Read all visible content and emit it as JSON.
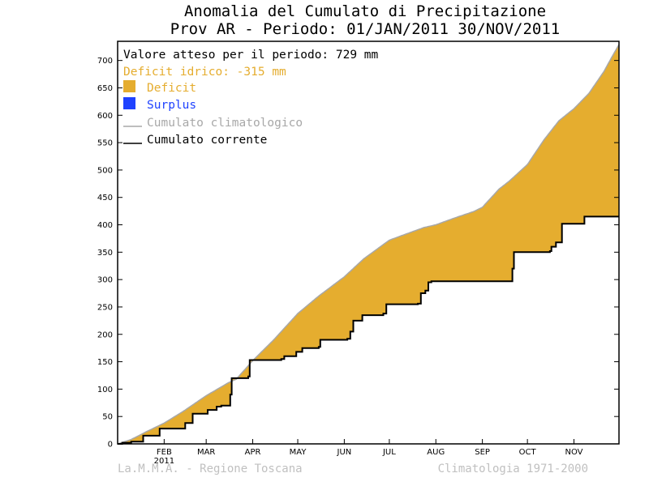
{
  "chart_data": {
    "type": "area",
    "title": "Anomalia del Cumulato di Precipitazione",
    "subtitle": "Prov AR - Periodo: 01/JAN/2011 30/NOV/2011",
    "xlabel": "",
    "ylabel": "",
    "ylim": [
      0,
      735
    ],
    "xlim_days": [
      1,
      335
    ],
    "yticks": [
      0,
      50,
      100,
      150,
      200,
      250,
      300,
      350,
      400,
      450,
      500,
      550,
      600,
      650,
      700
    ],
    "xticks": [
      {
        "day": 32,
        "label": "FEB",
        "sublabel": "2011"
      },
      {
        "day": 60,
        "label": "MAR",
        "sublabel": ""
      },
      {
        "day": 91,
        "label": "APR",
        "sublabel": ""
      },
      {
        "day": 121,
        "label": "MAY",
        "sublabel": ""
      },
      {
        "day": 152,
        "label": "JUN",
        "sublabel": ""
      },
      {
        "day": 182,
        "label": "JUL",
        "sublabel": ""
      },
      {
        "day": 213,
        "label": "AUG",
        "sublabel": ""
      },
      {
        "day": 244,
        "label": "SEP",
        "sublabel": ""
      },
      {
        "day": 274,
        "label": "OCT",
        "sublabel": ""
      },
      {
        "day": 305,
        "label": "NOV",
        "sublabel": ""
      }
    ],
    "series": [
      {
        "name": "Cumulato climatologico",
        "color": "#a8a8a8",
        "points": [
          [
            1,
            0
          ],
          [
            10,
            8
          ],
          [
            20,
            22
          ],
          [
            32,
            38
          ],
          [
            45,
            60
          ],
          [
            60,
            88
          ],
          [
            75,
            112
          ],
          [
            80,
            118
          ],
          [
            91,
            152
          ],
          [
            105,
            190
          ],
          [
            121,
            238
          ],
          [
            135,
            270
          ],
          [
            152,
            305
          ],
          [
            165,
            338
          ],
          [
            182,
            372
          ],
          [
            195,
            385
          ],
          [
            205,
            395
          ],
          [
            213,
            400
          ],
          [
            225,
            412
          ],
          [
            238,
            424
          ],
          [
            244,
            432
          ],
          [
            255,
            465
          ],
          [
            262,
            480
          ],
          [
            274,
            510
          ],
          [
            285,
            555
          ],
          [
            295,
            590
          ],
          [
            305,
            612
          ],
          [
            315,
            640
          ],
          [
            325,
            680
          ],
          [
            330,
            705
          ],
          [
            335,
            729
          ]
        ]
      },
      {
        "name": "Cumulato corrente",
        "color": "#000000",
        "steps": [
          [
            1,
            0
          ],
          [
            4,
            2
          ],
          [
            10,
            4
          ],
          [
            18,
            15
          ],
          [
            29,
            28
          ],
          [
            43,
            28
          ],
          [
            46,
            38
          ],
          [
            51,
            55
          ],
          [
            61,
            62
          ],
          [
            67,
            68
          ],
          [
            70,
            70
          ],
          [
            76,
            90
          ],
          [
            77,
            120
          ],
          [
            88,
            123
          ],
          [
            89,
            153
          ],
          [
            110,
            155
          ],
          [
            112,
            160
          ],
          [
            120,
            168
          ],
          [
            124,
            175
          ],
          [
            135,
            177
          ],
          [
            136,
            190
          ],
          [
            154,
            192
          ],
          [
            156,
            205
          ],
          [
            158,
            225
          ],
          [
            164,
            235
          ],
          [
            178,
            238
          ],
          [
            180,
            255
          ],
          [
            201,
            256
          ],
          [
            203,
            275
          ],
          [
            206,
            280
          ],
          [
            208,
            295
          ],
          [
            210,
            297
          ],
          [
            263,
            297
          ],
          [
            264,
            320
          ],
          [
            265,
            350
          ],
          [
            289,
            352
          ],
          [
            290,
            360
          ],
          [
            293,
            368
          ],
          [
            296,
            368
          ],
          [
            297,
            402
          ],
          [
            310,
            402
          ],
          [
            312,
            415
          ],
          [
            335,
            415
          ]
        ]
      }
    ],
    "fills": [
      {
        "name": "Deficit",
        "color": "#e5ad2f"
      },
      {
        "name": "Surplus",
        "color": "#1f42ff"
      }
    ],
    "annotation_expected": "Valore atteso per il periodo: 729 mm",
    "annotation_deficit": "Deficit idrico: -315 mm",
    "annotation_deficit_color": "#e5ad2f",
    "legend_placement": "top-left"
  },
  "footer": {
    "left": "La.M.M.A. - Regione Toscana",
    "right": "Climatologia 1971-2000"
  }
}
